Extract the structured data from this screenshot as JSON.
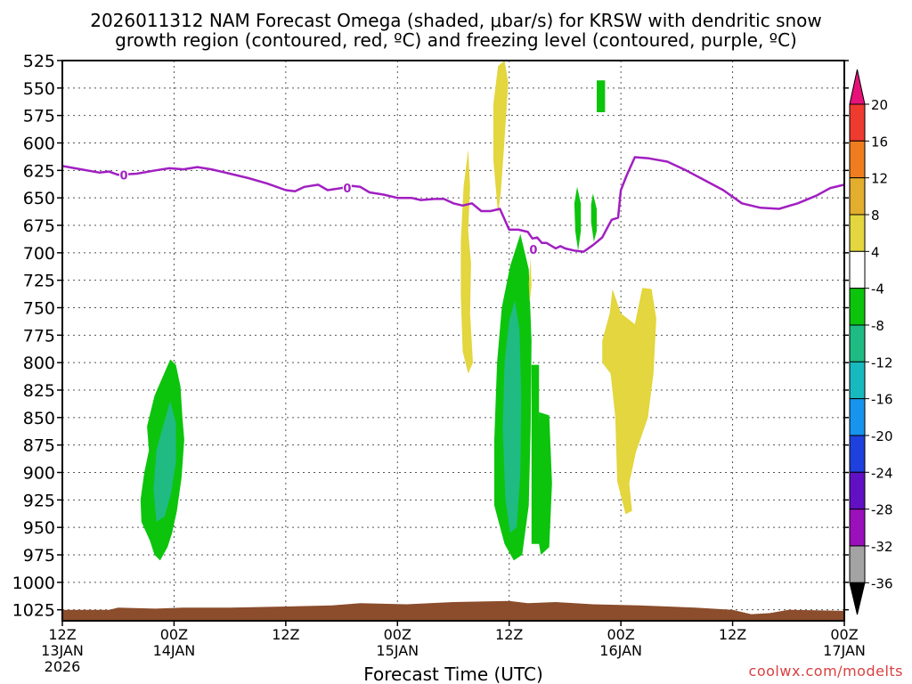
{
  "credit": "coolwx.com/modelts",
  "chart_data": {
    "type": "heatmap",
    "title": [
      "2026011312 NAM Forecast Omega (shaded, μbar/s) for KRSW with dendritic snow",
      "growth region (contoured, red, ºC) and freezing level (contoured, purple, ºC)"
    ],
    "xlabel": "Forecast Time (UTC)",
    "xlim": [
      0,
      84
    ],
    "x_ticks": [
      {
        "h": 0,
        "label": [
          "12Z",
          "13JAN",
          "2026"
        ]
      },
      {
        "h": 12,
        "label": [
          "00Z",
          "14JAN"
        ]
      },
      {
        "h": 24,
        "label": [
          "12Z"
        ]
      },
      {
        "h": 36,
        "label": [
          "00Z",
          "15JAN"
        ]
      },
      {
        "h": 48,
        "label": [
          "12Z"
        ]
      },
      {
        "h": 60,
        "label": [
          "00Z",
          "16JAN"
        ]
      },
      {
        "h": 72,
        "label": [
          "12Z"
        ]
      },
      {
        "h": 84,
        "label": [
          "00Z",
          "17JAN"
        ]
      }
    ],
    "ylim": [
      525,
      1035
    ],
    "y_ticks": [
      525,
      550,
      575,
      600,
      625,
      650,
      675,
      700,
      725,
      750,
      775,
      800,
      825,
      850,
      875,
      900,
      925,
      950,
      975,
      1000,
      1025
    ],
    "y_tick_labels": [
      "525",
      "550",
      "575",
      "600",
      "625",
      "650",
      "675",
      "700",
      "725",
      "750",
      "775",
      "800",
      "825",
      "850",
      "875",
      "900",
      "925",
      "950",
      "975",
      "1000",
      "1025"
    ],
    "colorbar": {
      "labels": [
        "20",
        "16",
        "12",
        "8",
        "4",
        "-4",
        "-8",
        "-12",
        "-16",
        "-20",
        "-24",
        "-28",
        "-32",
        "-36"
      ],
      "colors": [
        "#e6127a",
        "#ee3a2f",
        "#ef7d1f",
        "#e3ad2e",
        "#e3d63e",
        "#ffffff",
        "#0cc40c",
        "#1fbb82",
        "#17b9bf",
        "#1694ee",
        "#1e40dd",
        "#6110c4",
        "#9a10ba",
        "#a3a3a3",
        "#000000"
      ]
    },
    "series": [
      {
        "type": "line",
        "color": "#a11fc2",
        "contour_label": "0",
        "label_points": [
          [
            6.6,
            629
          ],
          [
            30.6,
            641
          ],
          [
            50.6,
            697
          ]
        ],
        "points": [
          [
            0,
            621
          ],
          [
            2,
            624
          ],
          [
            4,
            627
          ],
          [
            5,
            626
          ],
          [
            6,
            629
          ],
          [
            8,
            628
          ],
          [
            10,
            625
          ],
          [
            11.5,
            623
          ],
          [
            13,
            624
          ],
          [
            14.5,
            622
          ],
          [
            16,
            624
          ],
          [
            18,
            628
          ],
          [
            20,
            632
          ],
          [
            22,
            637
          ],
          [
            24,
            643
          ],
          [
            25,
            644
          ],
          [
            26,
            640
          ],
          [
            27.5,
            638
          ],
          [
            28.5,
            643
          ],
          [
            30,
            641
          ],
          [
            31,
            639
          ],
          [
            32,
            640
          ],
          [
            33,
            645
          ],
          [
            34.5,
            647
          ],
          [
            36,
            650
          ],
          [
            37.5,
            650
          ],
          [
            38.5,
            652
          ],
          [
            40,
            651
          ],
          [
            41,
            651
          ],
          [
            42,
            655
          ],
          [
            43,
            657
          ],
          [
            44,
            655
          ],
          [
            45,
            662
          ],
          [
            46,
            662
          ],
          [
            47,
            660
          ],
          [
            48,
            679
          ],
          [
            49,
            679
          ],
          [
            50,
            681
          ],
          [
            50.5,
            687
          ],
          [
            51,
            686
          ],
          [
            51.5,
            691
          ],
          [
            52,
            691
          ],
          [
            53,
            696
          ],
          [
            53.5,
            694
          ],
          [
            54,
            696
          ],
          [
            55,
            698
          ],
          [
            56,
            699
          ],
          [
            57,
            693
          ],
          [
            58,
            686
          ],
          [
            59,
            670
          ],
          [
            59.7,
            668
          ],
          [
            60,
            643
          ],
          [
            60.6,
            630
          ],
          [
            61.5,
            613
          ],
          [
            63,
            614
          ],
          [
            65,
            617
          ],
          [
            67,
            625
          ],
          [
            69,
            634
          ],
          [
            71,
            643
          ],
          [
            73,
            655
          ],
          [
            75,
            659
          ],
          [
            77,
            660
          ],
          [
            79,
            655
          ],
          [
            81,
            648
          ],
          [
            82.5,
            641
          ],
          [
            84,
            638
          ]
        ]
      }
    ],
    "shaded_regions": [
      {
        "value_range": [
          -8,
          -4
        ],
        "color": "#0cc40c",
        "points": [
          [
            11.6,
            797
          ],
          [
            12.2,
            802
          ],
          [
            12.7,
            822
          ],
          [
            12.9,
            850
          ],
          [
            13.1,
            870
          ],
          [
            12.8,
            905
          ],
          [
            12.3,
            935
          ],
          [
            11.8,
            955
          ],
          [
            11.3,
            968
          ],
          [
            10.5,
            980
          ],
          [
            9.9,
            975
          ],
          [
            9.4,
            962
          ],
          [
            8.5,
            945
          ],
          [
            8.4,
            925
          ],
          [
            8.8,
            900
          ],
          [
            9.3,
            880
          ],
          [
            9.1,
            858
          ],
          [
            9.9,
            830
          ]
        ]
      },
      {
        "value_range": [
          -12,
          -8
        ],
        "color": "#1fbb82",
        "points": [
          [
            11.6,
            835
          ],
          [
            12.2,
            855
          ],
          [
            12.2,
            890
          ],
          [
            11.7,
            918
          ],
          [
            11.0,
            940
          ],
          [
            10.1,
            945
          ],
          [
            9.8,
            915
          ],
          [
            10.1,
            880
          ],
          [
            10.8,
            858
          ]
        ]
      },
      {
        "value_range": [
          -8,
          -4
        ],
        "color": "#0cc40c",
        "points": [
          [
            49.2,
            683
          ],
          [
            50.1,
            715
          ],
          [
            50.4,
            780
          ],
          [
            50.3,
            860
          ],
          [
            50.1,
            930
          ],
          [
            49.4,
            975
          ],
          [
            48.5,
            980
          ],
          [
            47.5,
            965
          ],
          [
            46.4,
            930
          ],
          [
            46.4,
            870
          ],
          [
            46.7,
            800
          ],
          [
            47.2,
            750
          ],
          [
            48.1,
            712
          ]
        ]
      },
      {
        "value_range": [
          -12,
          -8
        ],
        "color": "#1fbb82",
        "points": [
          [
            48.6,
            743
          ],
          [
            49.1,
            770
          ],
          [
            49.3,
            830
          ],
          [
            49.2,
            900
          ],
          [
            48.8,
            950
          ],
          [
            48.1,
            955
          ],
          [
            47.6,
            925
          ],
          [
            47.3,
            860
          ],
          [
            47.5,
            800
          ],
          [
            48.0,
            762
          ]
        ]
      },
      {
        "value_range": [
          -8,
          -4
        ],
        "color": "#0cc40c",
        "points": [
          [
            50.4,
            802
          ],
          [
            51.2,
            802
          ],
          [
            51.2,
            965
          ],
          [
            50.4,
            965
          ]
        ]
      },
      {
        "value_range": [
          -8,
          -4
        ],
        "color": "#0cc40c",
        "points": [
          [
            51.2,
            845
          ],
          [
            52.3,
            848
          ],
          [
            52.6,
            910
          ],
          [
            52.3,
            968
          ],
          [
            51.4,
            975
          ],
          [
            51.0,
            955
          ]
        ]
      },
      {
        "value_range": [
          -8,
          -4
        ],
        "color": "#0cc40c",
        "points": [
          [
            55.3,
            640
          ],
          [
            55.7,
            655
          ],
          [
            55.7,
            680
          ],
          [
            55.4,
            698
          ],
          [
            55.1,
            680
          ],
          [
            55.0,
            655
          ]
        ]
      },
      {
        "value_range": [
          -8,
          -4
        ],
        "color": "#0cc40c",
        "points": [
          [
            57.0,
            646
          ],
          [
            57.4,
            660
          ],
          [
            57.4,
            680
          ],
          [
            57.1,
            690
          ],
          [
            56.8,
            672
          ],
          [
            56.8,
            656
          ]
        ]
      },
      {
        "value_range": [
          -8,
          -4
        ],
        "color": "#0cc40c",
        "points": [
          [
            57.4,
            543
          ],
          [
            58.3,
            543
          ],
          [
            58.3,
            572
          ],
          [
            57.4,
            572
          ]
        ]
      },
      {
        "value_range": [
          4,
          8
        ],
        "color": "#e3d63e",
        "points": [
          [
            47.5,
            525
          ],
          [
            47.9,
            545
          ],
          [
            47.4,
            610
          ],
          [
            47.1,
            645
          ],
          [
            46.8,
            665
          ],
          [
            46.3,
            615
          ],
          [
            46.3,
            565
          ],
          [
            46.8,
            530
          ]
        ]
      },
      {
        "value_range": [
          4,
          8
        ],
        "color": "#e3d63e",
        "points": [
          [
            43.6,
            606
          ],
          [
            43.8,
            640
          ],
          [
            43.6,
            680
          ],
          [
            43.9,
            710
          ],
          [
            43.8,
            755
          ],
          [
            44.1,
            800
          ],
          [
            43.6,
            810
          ],
          [
            43.0,
            790
          ],
          [
            42.8,
            740
          ],
          [
            42.8,
            690
          ],
          [
            43.1,
            640
          ]
        ]
      },
      {
        "value_range": [
          4,
          8
        ],
        "color": "#e3d63e",
        "points": [
          [
            50.3,
            705
          ],
          [
            50.4,
            730
          ],
          [
            50.2,
            745
          ],
          [
            50.1,
            728
          ]
        ]
      },
      {
        "value_range": [
          4,
          8
        ],
        "color": "#e3d63e",
        "points": [
          [
            59.1,
            733
          ],
          [
            60.0,
            755
          ],
          [
            61.5,
            765
          ],
          [
            62.3,
            732
          ],
          [
            63.3,
            733
          ],
          [
            63.8,
            760
          ],
          [
            63.5,
            810
          ],
          [
            62.9,
            850
          ],
          [
            61.6,
            882
          ],
          [
            60.9,
            910
          ],
          [
            61.2,
            935
          ],
          [
            60.5,
            938
          ],
          [
            59.6,
            908
          ],
          [
            59.4,
            850
          ],
          [
            58.9,
            810
          ],
          [
            58.0,
            800
          ],
          [
            58.0,
            780
          ],
          [
            58.8,
            755
          ]
        ]
      },
      {
        "value_range": [
          -36,
          -32
        ],
        "color": "#8b4d2c",
        "points": [
          [
            0,
            1025
          ],
          [
            5,
            1025
          ],
          [
            6,
            1023
          ],
          [
            10,
            1024
          ],
          [
            13,
            1023
          ],
          [
            18,
            1023
          ],
          [
            24,
            1022
          ],
          [
            29,
            1021
          ],
          [
            32,
            1019
          ],
          [
            37,
            1020
          ],
          [
            42,
            1018
          ],
          [
            48,
            1017
          ],
          [
            50,
            1019
          ],
          [
            53,
            1018
          ],
          [
            57,
            1020
          ],
          [
            62,
            1021
          ],
          [
            68,
            1023
          ],
          [
            72,
            1025
          ],
          [
            74,
            1029
          ],
          [
            76,
            1028
          ],
          [
            78,
            1025
          ],
          [
            84,
            1026
          ],
          [
            84,
            1035
          ],
          [
            0,
            1035
          ]
        ]
      }
    ]
  }
}
